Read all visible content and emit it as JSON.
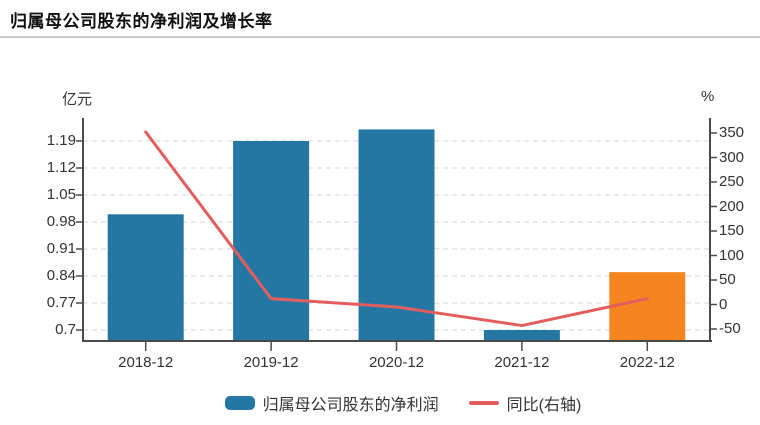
{
  "chart_data": {
    "type": "combo",
    "title": "归属母公司股东的净利润及增长率",
    "categories": [
      "2018-12",
      "2019-12",
      "2020-12",
      "2021-12",
      "2022-12"
    ],
    "series": [
      {
        "name": "归属母公司股东的净利润",
        "type": "bar",
        "axis": "left",
        "unit": "亿元",
        "values": [
          1.0,
          1.19,
          1.22,
          0.7,
          0.85
        ]
      },
      {
        "name": "同比(右轴)",
        "type": "line",
        "axis": "right",
        "unit": "%",
        "values": [
          352,
          12,
          -5,
          -43,
          12
        ]
      }
    ],
    "left_axis": {
      "label": "亿元",
      "tick_labels": [
        "1.19",
        "1.12",
        "1.05",
        "0.98",
        "0.91",
        "0.84",
        "0.77",
        "0.7"
      ],
      "tick_values": [
        1.19,
        1.12,
        1.05,
        0.98,
        0.91,
        0.84,
        0.77,
        0.7
      ]
    },
    "right_axis": {
      "label": "%",
      "tick_labels": [
        "350",
        "300",
        "250",
        "200",
        "150",
        "100",
        "50",
        "0",
        "-50"
      ],
      "tick_values": [
        350,
        300,
        250,
        200,
        150,
        100,
        50,
        0,
        -50
      ]
    },
    "colors": {
      "bar": "#2577a3",
      "bar_highlight": "#f5861f",
      "line": "#e35d5d",
      "grid": "#dedede",
      "axis": "#4a4a4a",
      "text": "#333333"
    },
    "highlight_index": 4,
    "legend_position": "bottom",
    "grid": "dashed-horizontal"
  }
}
